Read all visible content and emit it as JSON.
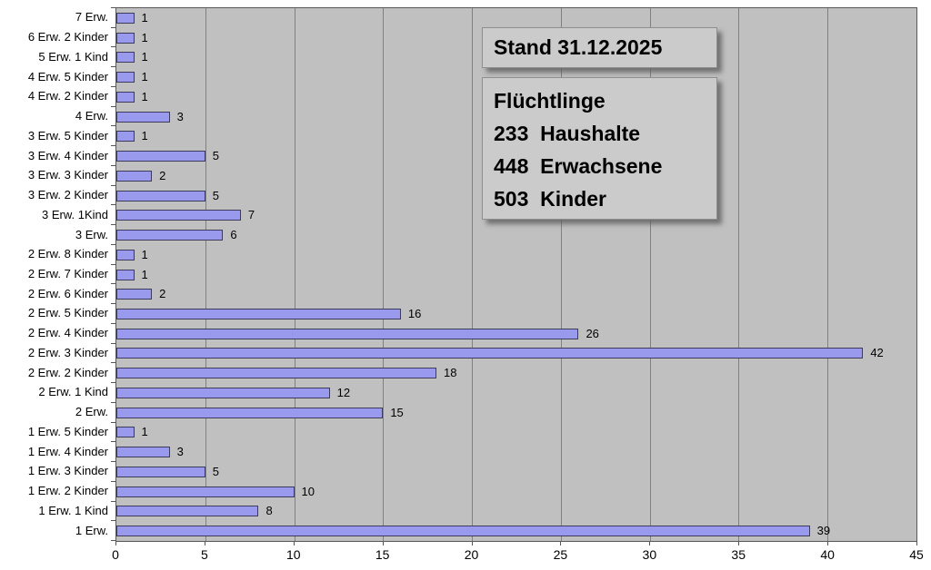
{
  "chart_data": {
    "type": "bar",
    "orientation": "horizontal",
    "title": "",
    "xlabel": "",
    "ylabel": "",
    "categories": [
      "7 Erw.",
      "6 Erw. 2 Kinder",
      "5 Erw. 1 Kind",
      "4 Erw. 5 Kinder",
      "4 Erw. 2 Kinder",
      "4 Erw.",
      "3 Erw. 5 Kinder",
      "3 Erw. 4 Kinder",
      "3 Erw. 3 Kinder",
      "3 Erw. 2 Kinder",
      "3 Erw. 1Kind",
      "3 Erw.",
      "2 Erw. 8 Kinder",
      "2 Erw. 7 Kinder",
      "2 Erw. 6 Kinder",
      "2 Erw. 5 Kinder",
      "2 Erw. 4 Kinder",
      "2 Erw. 3 Kinder",
      "2 Erw. 2 Kinder",
      "2 Erw. 1 Kind",
      "2 Erw.",
      "1 Erw. 5 Kinder",
      "1 Erw. 4 Kinder",
      "1 Erw. 3 Kinder",
      "1 Erw. 2 Kinder",
      "1 Erw. 1 Kind",
      "1 Erw."
    ],
    "values": [
      1,
      1,
      1,
      1,
      1,
      3,
      1,
      5,
      2,
      5,
      7,
      6,
      1,
      1,
      2,
      16,
      26,
      42,
      18,
      12,
      15,
      1,
      3,
      5,
      10,
      8,
      39
    ],
    "xlim": [
      0,
      45
    ],
    "x_ticks": [
      0,
      5,
      10,
      15,
      20,
      25,
      30,
      35,
      40,
      45
    ],
    "grid": true,
    "legend": false,
    "colors": {
      "bar_fill": "#9999ee",
      "bar_border": "#3c3c5a",
      "plot_background": "#c0c0c0",
      "gridline": "#808080"
    }
  },
  "annotations": {
    "stand_box": "Stand 31.12.2025",
    "summary_box": "Flüchtlinge\n233  Haushalte\n448  Erwachsene\n503  Kinder"
  }
}
